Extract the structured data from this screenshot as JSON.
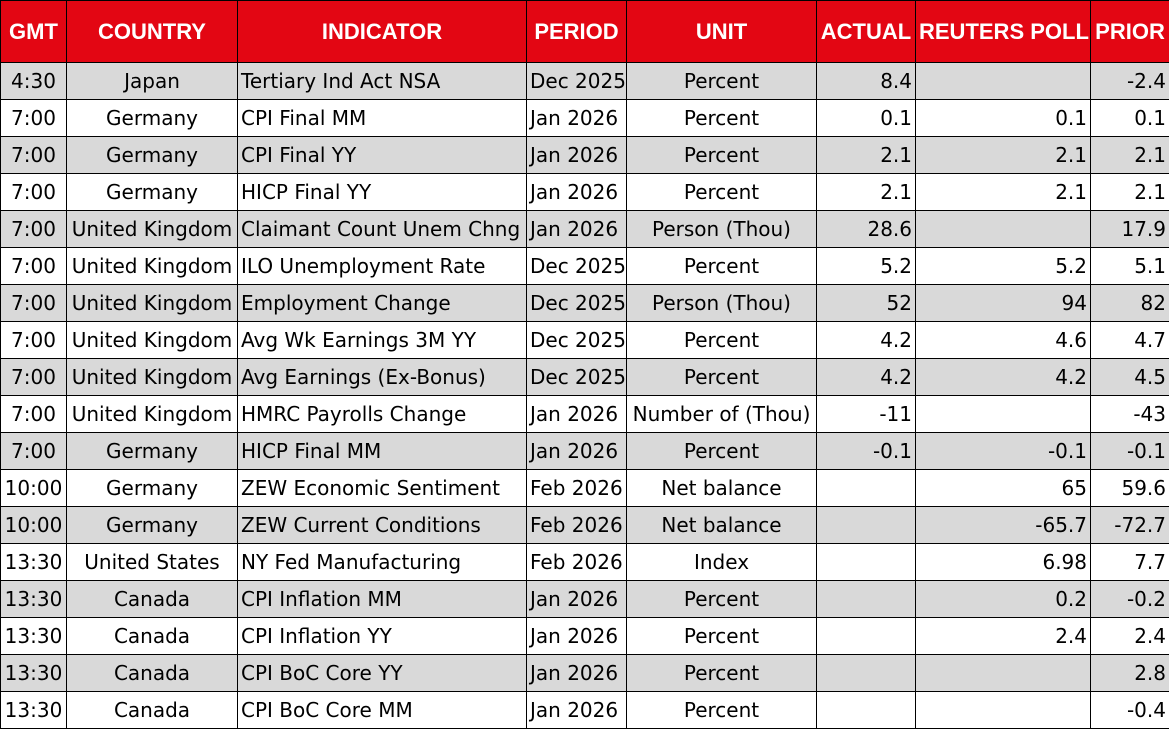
{
  "colors": {
    "header_bg": "#e30613",
    "header_text": "#ffffff",
    "shaded_row": "#d9d9d9",
    "row": "#ffffff"
  },
  "headers": [
    "GMT",
    "COUNTRY",
    "INDICATOR",
    "PERIOD",
    "UNIT",
    "ACTUAL",
    "REUTERS POLL",
    "PRIOR"
  ],
  "rows": [
    {
      "gmt": "4:30",
      "country": "Japan",
      "indicator": "Tertiary Ind Act NSA",
      "period": "Dec 2025",
      "unit": "Percent",
      "actual": "8.4",
      "poll": "",
      "prior": "-2.4",
      "shaded": true
    },
    {
      "gmt": "7:00",
      "country": "Germany",
      "indicator": "CPI Final MM",
      "period": "Jan 2026",
      "unit": "Percent",
      "actual": "0.1",
      "poll": "0.1",
      "prior": "0.1",
      "shaded": false
    },
    {
      "gmt": "7:00",
      "country": "Germany",
      "indicator": "CPI Final YY",
      "period": "Jan 2026",
      "unit": "Percent",
      "actual": "2.1",
      "poll": "2.1",
      "prior": "2.1",
      "shaded": true
    },
    {
      "gmt": "7:00",
      "country": "Germany",
      "indicator": "HICP Final YY",
      "period": "Jan 2026",
      "unit": "Percent",
      "actual": "2.1",
      "poll": "2.1",
      "prior": "2.1",
      "shaded": false
    },
    {
      "gmt": "7:00",
      "country": "United Kingdom",
      "indicator": "Claimant Count Unem Chng",
      "period": "Jan 2026",
      "unit": "Person (Thou)",
      "actual": "28.6",
      "poll": "",
      "prior": "17.9",
      "shaded": true
    },
    {
      "gmt": "7:00",
      "country": "United Kingdom",
      "indicator": "ILO Unemployment Rate",
      "period": "Dec 2025",
      "unit": "Percent",
      "actual": "5.2",
      "poll": "5.2",
      "prior": "5.1",
      "shaded": false
    },
    {
      "gmt": "7:00",
      "country": "United Kingdom",
      "indicator": "Employment Change",
      "period": "Dec 2025",
      "unit": "Person (Thou)",
      "actual": "52",
      "poll": "94",
      "prior": "82",
      "shaded": true
    },
    {
      "gmt": "7:00",
      "country": "United Kingdom",
      "indicator": "Avg Wk Earnings 3M YY",
      "period": "Dec 2025",
      "unit": "Percent",
      "actual": "4.2",
      "poll": "4.6",
      "prior": "4.7",
      "shaded": false
    },
    {
      "gmt": "7:00",
      "country": "United Kingdom",
      "indicator": "Avg Earnings (Ex-Bonus)",
      "period": "Dec 2025",
      "unit": "Percent",
      "actual": "4.2",
      "poll": "4.2",
      "prior": "4.5",
      "shaded": true
    },
    {
      "gmt": "7:00",
      "country": "United Kingdom",
      "indicator": "HMRC Payrolls Change",
      "period": "Jan 2026",
      "unit": "Number of (Thou)",
      "actual": "-11",
      "poll": "",
      "prior": "-43",
      "shaded": false
    },
    {
      "gmt": "7:00",
      "country": "Germany",
      "indicator": "HICP Final MM",
      "period": "Jan 2026",
      "unit": "Percent",
      "actual": "-0.1",
      "poll": "-0.1",
      "prior": "-0.1",
      "shaded": true
    },
    {
      "gmt": "10:00",
      "country": "Germany",
      "indicator": "ZEW Economic Sentiment",
      "period": "Feb 2026",
      "unit": "Net balance",
      "actual": "",
      "poll": "65",
      "prior": "59.6",
      "shaded": false
    },
    {
      "gmt": "10:00",
      "country": "Germany",
      "indicator": "ZEW Current Conditions",
      "period": "Feb 2026",
      "unit": "Net balance",
      "actual": "",
      "poll": "-65.7",
      "prior": "-72.7",
      "shaded": true
    },
    {
      "gmt": "13:30",
      "country": "United States",
      "indicator": "NY Fed Manufacturing",
      "period": "Feb 2026",
      "unit": "Index",
      "actual": "",
      "poll": "6.98",
      "prior": "7.7",
      "shaded": false
    },
    {
      "gmt": "13:30",
      "country": "Canada",
      "indicator": "CPI Inflation MM",
      "period": "Jan 2026",
      "unit": "Percent",
      "actual": "",
      "poll": "0.2",
      "prior": "-0.2",
      "shaded": true
    },
    {
      "gmt": "13:30",
      "country": "Canada",
      "indicator": "CPI Inflation YY",
      "period": "Jan 2026",
      "unit": "Percent",
      "actual": "",
      "poll": "2.4",
      "prior": "2.4",
      "shaded": false
    },
    {
      "gmt": "13:30",
      "country": "Canada",
      "indicator": "CPI BoC Core YY",
      "period": "Jan 2026",
      "unit": "Percent",
      "actual": "",
      "poll": "",
      "prior": "2.8",
      "shaded": true
    },
    {
      "gmt": "13:30",
      "country": "Canada",
      "indicator": "CPI BoC Core MM",
      "period": "Jan 2026",
      "unit": "Percent",
      "actual": "",
      "poll": "",
      "prior": "-0.4",
      "shaded": false
    }
  ]
}
